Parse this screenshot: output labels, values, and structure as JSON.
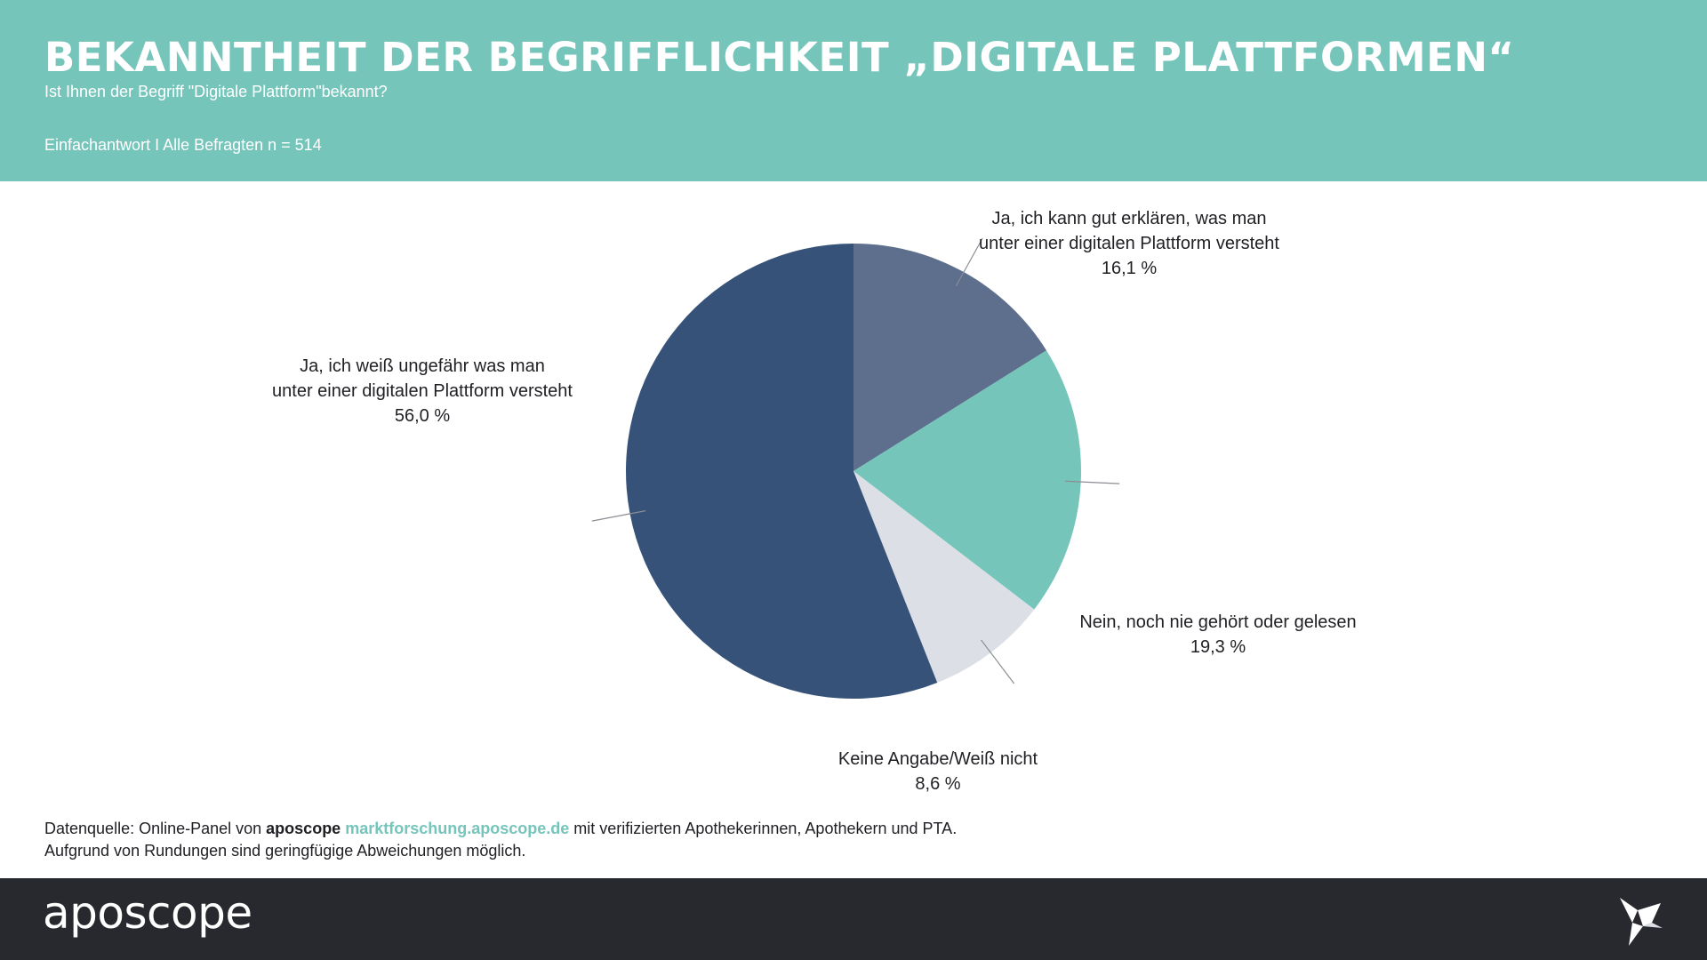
{
  "header": {
    "title": "BEKANNTHEIT DER BEGRIFFLICHKEIT „DIGITALE PLATTFORMEN“",
    "subtitle": "Ist Ihnen der Begriff \"Digitale Plattform\"bekannt?",
    "sample": "Einfachantwort I Alle Befragten n = 514"
  },
  "chart_data": {
    "type": "pie",
    "slices": [
      {
        "label_lines": [
          "Ja, ich kann gut erklären, was man",
          "unter einer digitalen Plattform versteht"
        ],
        "value": 16.1,
        "value_label": "16,1 %",
        "color": "#5e6f8e"
      },
      {
        "label_lines": [
          "Nein, noch nie gehört oder gelesen"
        ],
        "value": 19.3,
        "value_label": "19,3 %",
        "color": "#76c5bb"
      },
      {
        "label_lines": [
          "Keine Angabe/Weiß nicht"
        ],
        "value": 8.6,
        "value_label": "8,6 %",
        "color": "#dcdfe6"
      },
      {
        "label_lines": [
          "Ja, ich weiß ungefähr was man",
          "unter einer digitalen Plattform versteht"
        ],
        "value": 56.0,
        "value_label": "56,0 %",
        "color": "#375279"
      }
    ],
    "start_angle_deg": 0,
    "direction": "clockwise"
  },
  "source": {
    "prefix": "Datenquelle: Online-Panel von ",
    "brand": "aposcope",
    "link": "marktforschung.aposcope.de",
    "suffix": " mit verifizierten Apothekerinnen, Apothekern und PTA.",
    "note": "Aufgrund von Rundungen sind geringfügige Abweichungen möglich."
  },
  "footer": {
    "logo": "aposcope",
    "bird_icon": "origami-bird-icon"
  }
}
